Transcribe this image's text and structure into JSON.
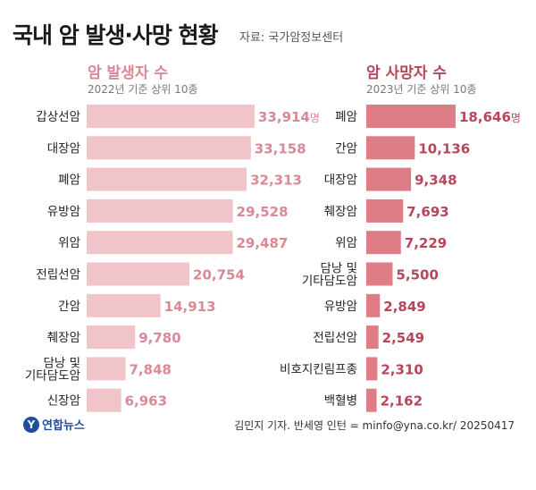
{
  "title": "국내 암 발생·사망 현황",
  "source": "자료: 국가암정보센터",
  "credit": "김민지 기자. 반세영 인턴 = minfo@yna.co.kr/ 20250417",
  "logo": {
    "icon": "yonhap-logo-icon",
    "text": "연합뉴스"
  },
  "colors": {
    "incidence": "#f0c4c9",
    "incidence_text": "#d98995",
    "death": "#df7d86",
    "death_text": "#b8465a"
  },
  "chart_data": [
    {
      "type": "bar",
      "orientation": "horizontal",
      "title": "암 발생자 수",
      "subtitle": "2022년 기준 상위 10종",
      "unit": "명",
      "categories": [
        "갑상선암",
        "대장암",
        "폐암",
        "유방암",
        "위암",
        "전립선암",
        "간암",
        "췌장암",
        "담낭 및\n기타담도암",
        "신장암"
      ],
      "values": [
        33914,
        33158,
        32313,
        29528,
        29487,
        20754,
        14913,
        9780,
        7848,
        6963
      ],
      "labels": [
        "33,914",
        "33,158",
        "32,313",
        "29,528",
        "29,487",
        "20,754",
        "14,913",
        "9,780",
        "7,848",
        "6,963"
      ]
    },
    {
      "type": "bar",
      "orientation": "horizontal",
      "title": "암 사망자 수",
      "subtitle": "2023년 기준 상위 10종",
      "unit": "명",
      "categories": [
        "폐암",
        "간암",
        "대장암",
        "췌장암",
        "위암",
        "담낭 및\n기타담도암",
        "유방암",
        "전립선암",
        "비호지킨림프종",
        "백혈병"
      ],
      "values": [
        18646,
        10136,
        9348,
        7693,
        7229,
        5500,
        2849,
        2549,
        2310,
        2162
      ],
      "labels": [
        "18,646",
        "10,136",
        "9,348",
        "7,693",
        "7,229",
        "5,500",
        "2,849",
        "2,549",
        "2,310",
        "2,162"
      ]
    }
  ]
}
